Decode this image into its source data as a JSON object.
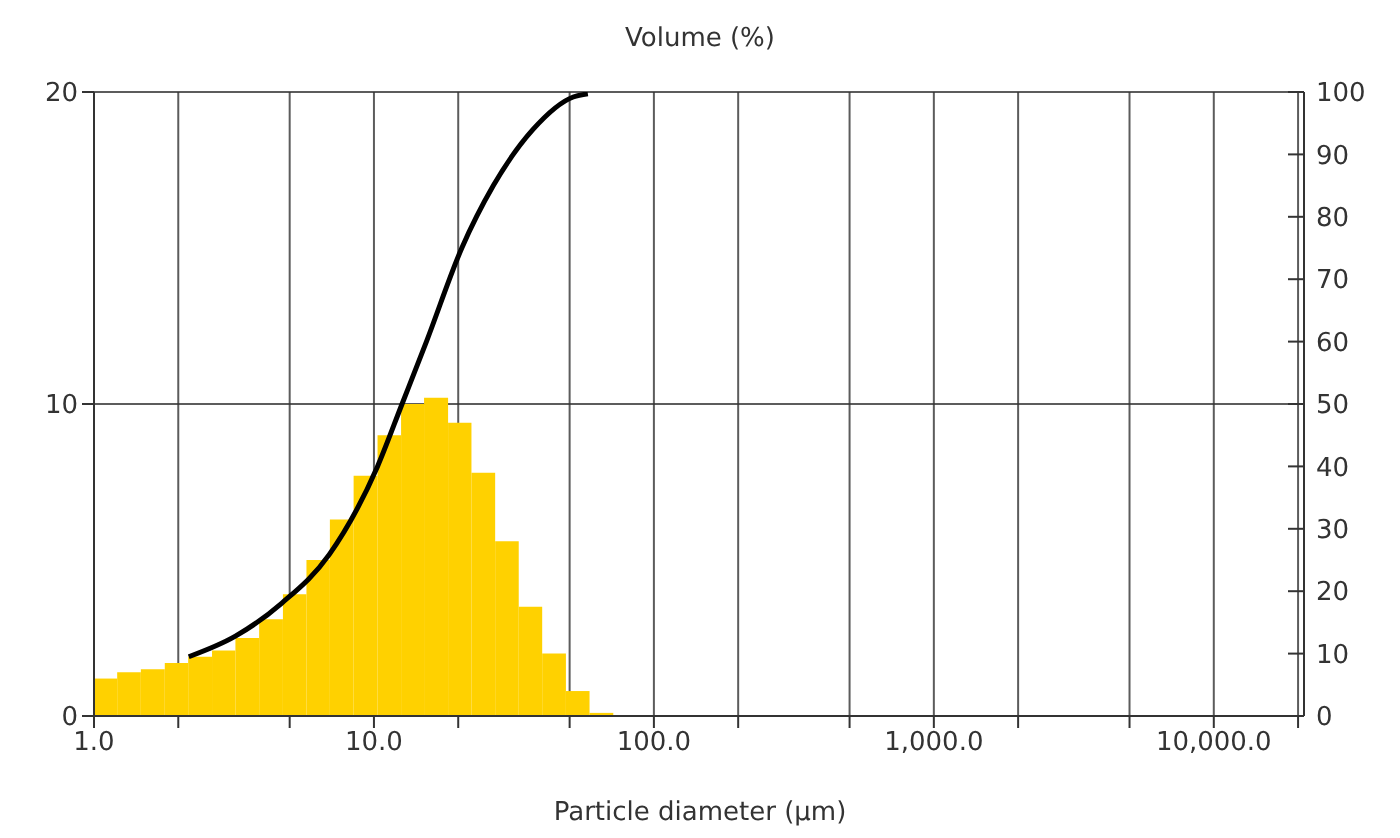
{
  "chart_data": {
    "type": "histogram",
    "title": "Volume (%)",
    "xlabel": "Particle diameter (µm)",
    "log": "x",
    "bins": [
      1.0,
      1.21,
      1.47,
      1.79,
      2.17,
      2.64,
      3.2,
      3.89,
      4.73,
      5.74,
      6.96,
      8.46,
      10.3,
      12.5,
      15.1,
      18.4,
      22.3,
      27.1,
      32.9,
      39.9,
      48.5,
      58.9,
      71.6
    ],
    "values": [
      1.2,
      1.4,
      1.5,
      1.7,
      1.9,
      2.1,
      2.5,
      3.1,
      3.9,
      5.0,
      6.3,
      7.7,
      9.0,
      10.0,
      10.2,
      9.4,
      7.8,
      5.6,
      3.5,
      2.0,
      0.8,
      0.1
    ],
    "color": "#ffd100",
    "series": [
      {
        "type": "line",
        "axis": "y2",
        "color": "#000000",
        "x": [
          2.18,
          3.2,
          4.69,
          6.93,
          10.3,
          12.6,
          15.4,
          20.6,
          26.7,
          37.0,
          51.5,
          58.1
        ],
        "values": [
          9.5,
          12.8,
          18.1,
          25.9,
          40,
          50,
          60,
          75,
          85,
          94,
          99.2,
          99.7
        ]
      }
    ],
    "xlim": [
      1,
      21000
    ],
    "xticks": [
      {
        "value": 1,
        "label": "1.0"
      },
      {
        "value": 2,
        "label": null
      },
      {
        "value": 5,
        "label": null
      },
      {
        "value": 10,
        "label": "10.0"
      },
      {
        "value": 20,
        "label": null
      },
      {
        "value": 50,
        "label": null
      },
      {
        "value": 100,
        "label": "100.0"
      },
      {
        "value": 200,
        "label": null
      },
      {
        "value": 500,
        "label": null
      },
      {
        "value": 1000,
        "label": "1,000.0"
      },
      {
        "value": 2000,
        "label": null
      },
      {
        "value": 5000,
        "label": null
      },
      {
        "value": 10000,
        "label": "10,000.0"
      },
      {
        "value": 20000,
        "label": null
      }
    ],
    "ylim": [
      0,
      20
    ],
    "yticks": [
      0,
      10,
      20
    ],
    "y2lim": [
      0,
      100
    ],
    "y2ticks": [
      0,
      10,
      20,
      30,
      40,
      50,
      60,
      70,
      80,
      90,
      100
    ],
    "grid": true
  }
}
